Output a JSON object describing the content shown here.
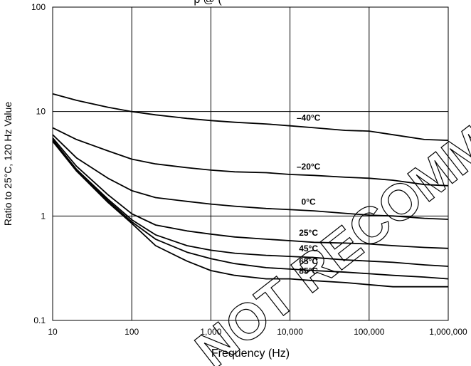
{
  "chart_data": {
    "type": "line",
    "title": "p @ (",
    "xlabel": "Frequency (Hz)",
    "ylabel": "Ratio to 25°C, 120 Hz Value",
    "x_scale": "log",
    "y_scale": "log",
    "xlim": [
      10,
      1000000
    ],
    "ylim": [
      0.1,
      100
    ],
    "x_ticks": [
      10,
      100,
      1000,
      10000,
      100000,
      1000000
    ],
    "x_tick_labels": [
      "10",
      "100",
      "1,000",
      "10,000",
      "100,000",
      "1,000,000"
    ],
    "y_ticks": [
      0.1,
      1,
      10,
      100
    ],
    "y_tick_labels": [
      "0.1",
      "1",
      "10",
      "100"
    ],
    "grid": true,
    "watermark": "NOT RECOMMENDED",
    "series": [
      {
        "name": "-40°C",
        "label": "–40°C",
        "x": [
          10,
          20,
          50,
          100,
          200,
          500,
          1000,
          2000,
          5000,
          10000,
          20000,
          50000,
          100000,
          200000,
          500000,
          1000000
        ],
        "y": [
          14.8,
          12.8,
          11.0,
          10.0,
          9.3,
          8.6,
          8.2,
          7.9,
          7.6,
          7.3,
          7.0,
          6.6,
          6.5,
          6.0,
          5.4,
          5.3
        ]
      },
      {
        "name": "-20°C",
        "label": "–20°C",
        "x": [
          10,
          20,
          50,
          100,
          200,
          500,
          1000,
          2000,
          5000,
          10000,
          20000,
          50000,
          100000,
          200000,
          500000,
          1000000
        ],
        "y": [
          7.0,
          5.4,
          4.2,
          3.5,
          3.15,
          2.9,
          2.75,
          2.65,
          2.6,
          2.5,
          2.45,
          2.35,
          2.3,
          2.2,
          2.0,
          1.95
        ]
      },
      {
        "name": "0°C",
        "label": "0°C",
        "x": [
          10,
          20,
          50,
          100,
          200,
          500,
          1000,
          2000,
          5000,
          10000,
          20000,
          50000,
          100000,
          200000,
          500000,
          1000000
        ],
        "y": [
          6.0,
          3.6,
          2.3,
          1.75,
          1.5,
          1.38,
          1.3,
          1.24,
          1.18,
          1.15,
          1.12,
          1.06,
          1.02,
          1.0,
          0.95,
          0.93
        ]
      },
      {
        "name": "25°C",
        "label": "25°C",
        "x": [
          10,
          20,
          50,
          100,
          200,
          500,
          1000,
          2000,
          5000,
          10000,
          20000,
          50000,
          100000,
          200000,
          500000,
          1000000
        ],
        "y": [
          5.6,
          3.0,
          1.6,
          1.05,
          0.82,
          0.72,
          0.67,
          0.63,
          0.6,
          0.58,
          0.56,
          0.55,
          0.54,
          0.52,
          0.5,
          0.49
        ]
      },
      {
        "name": "45°C",
        "label": "45°C",
        "x": [
          10,
          20,
          50,
          100,
          200,
          500,
          1000,
          2000,
          5000,
          10000,
          20000,
          50000,
          100000,
          200000,
          500000,
          1000000
        ],
        "y": [
          5.4,
          2.8,
          1.45,
          0.92,
          0.66,
          0.52,
          0.47,
          0.44,
          0.42,
          0.41,
          0.4,
          0.38,
          0.37,
          0.36,
          0.34,
          0.33
        ]
      },
      {
        "name": "65°C",
        "label": "65°C",
        "x": [
          10,
          20,
          50,
          100,
          200,
          500,
          1000,
          2000,
          5000,
          10000,
          20000,
          50000,
          100000,
          200000,
          500000,
          1000000
        ],
        "y": [
          5.2,
          2.7,
          1.4,
          0.88,
          0.6,
          0.45,
          0.39,
          0.35,
          0.32,
          0.31,
          0.3,
          0.29,
          0.28,
          0.27,
          0.26,
          0.25
        ]
      },
      {
        "name": "85°C",
        "label": "85°C",
        "x": [
          10,
          20,
          50,
          100,
          200,
          500,
          1000,
          2000,
          5000,
          10000,
          20000,
          50000,
          100000,
          200000,
          500000,
          1000000
        ],
        "y": [
          5.2,
          2.7,
          1.35,
          0.85,
          0.52,
          0.37,
          0.3,
          0.27,
          0.25,
          0.25,
          0.24,
          0.23,
          0.22,
          0.21,
          0.21,
          0.21
        ]
      }
    ]
  }
}
